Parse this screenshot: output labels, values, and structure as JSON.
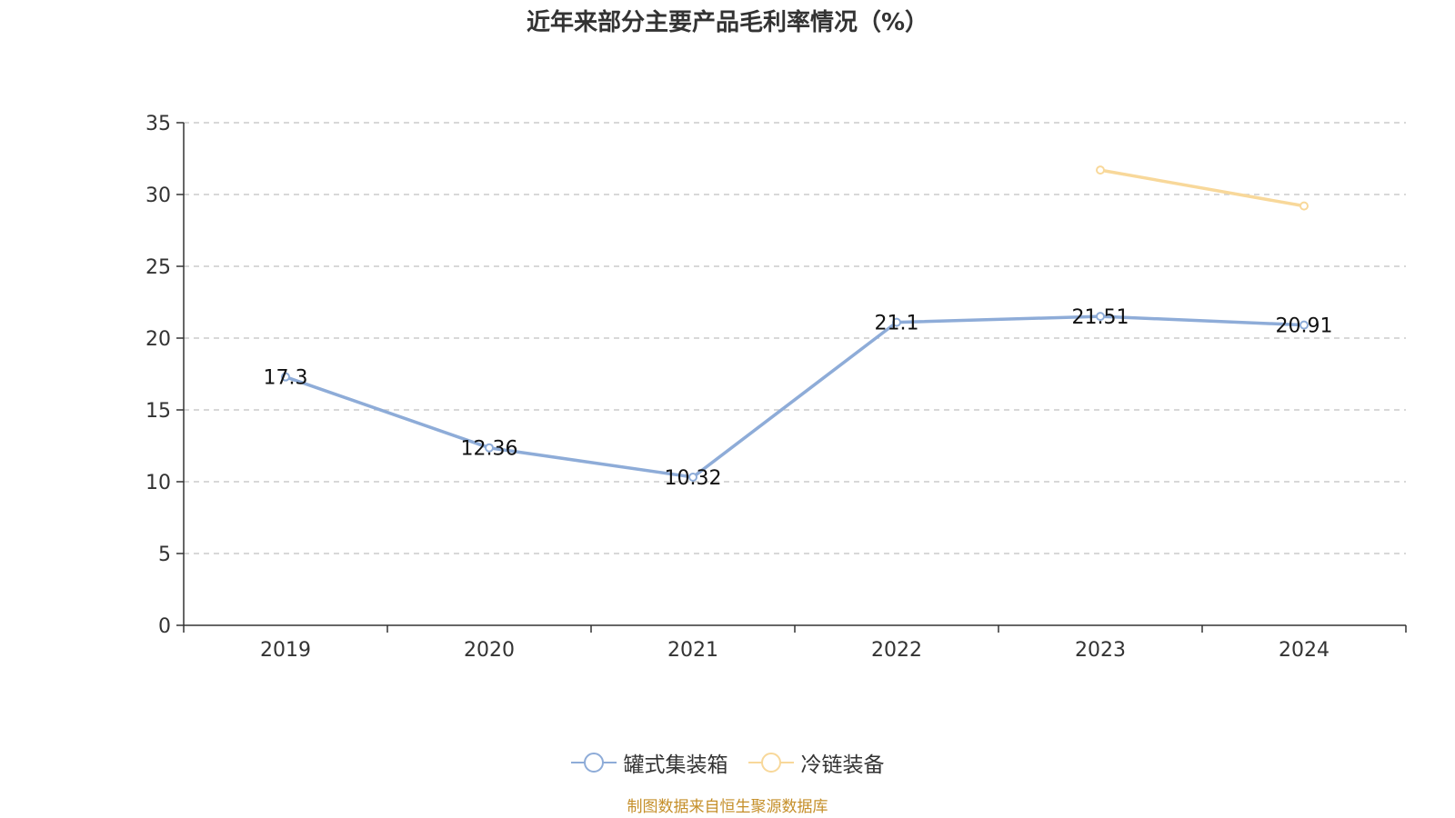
{
  "chart_data": {
    "type": "line",
    "title": "近年来部分主要产品毛利率情况（%）",
    "categories": [
      "2019",
      "2020",
      "2021",
      "2022",
      "2023",
      "2024"
    ],
    "ylim": [
      0,
      35
    ],
    "yticks": [
      0,
      5,
      10,
      15,
      20,
      25,
      30,
      35
    ],
    "grid": true,
    "legend_position": "bottom",
    "series": [
      {
        "name": "罐式集装箱",
        "color": "#8eacd8",
        "values": [
          17.3,
          12.36,
          10.32,
          21.1,
          21.51,
          20.91
        ],
        "labels": [
          "17.3",
          "12.36",
          "10.32",
          "21.1",
          "21.51",
          "20.91"
        ],
        "show_labels": true
      },
      {
        "name": "冷链装备",
        "color": "#f8d89a",
        "values": [
          null,
          null,
          null,
          null,
          31.7,
          29.2
        ],
        "show_labels": false
      }
    ]
  },
  "footer": {
    "source": "制图数据来自恒生聚源数据库"
  }
}
